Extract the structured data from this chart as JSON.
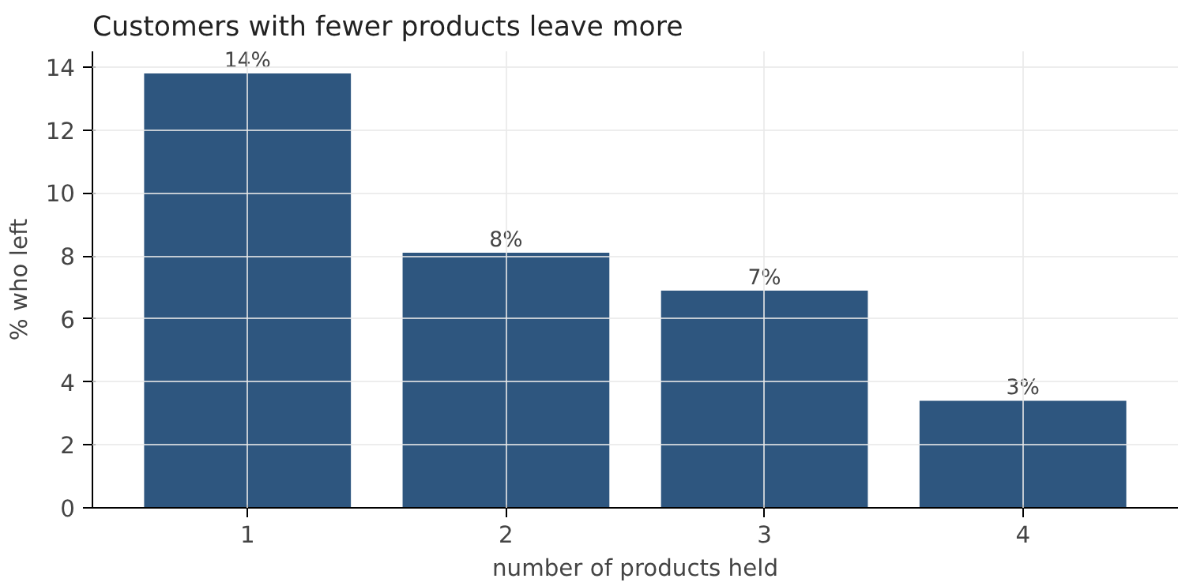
{
  "chart_data": {
    "type": "bar",
    "title": "Customers with fewer products leave more",
    "xlabel": "number of products held",
    "ylabel": "% who left",
    "categories": [
      "1",
      "2",
      "3",
      "4"
    ],
    "values": [
      13.8,
      8.1,
      6.9,
      3.4
    ],
    "value_labels": [
      "14%",
      "8%",
      "7%",
      "3%"
    ],
    "color": "#2e567f",
    "ylim": [
      0,
      14.5
    ],
    "yticks": [
      0,
      2,
      4,
      6,
      8,
      10,
      12,
      14
    ],
    "grid": true
  }
}
